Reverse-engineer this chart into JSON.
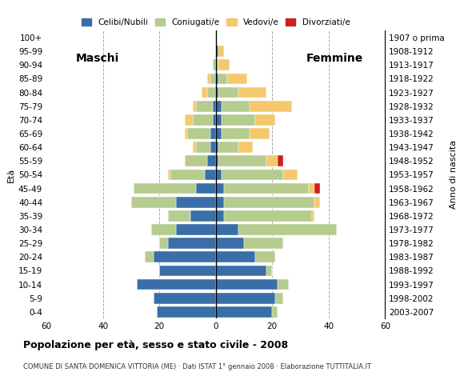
{
  "age_groups": [
    "0-4",
    "5-9",
    "10-14",
    "15-19",
    "20-24",
    "25-29",
    "30-34",
    "35-39",
    "40-44",
    "45-49",
    "50-54",
    "55-59",
    "60-64",
    "65-69",
    "70-74",
    "75-79",
    "80-84",
    "85-89",
    "90-94",
    "95-99",
    "100+"
  ],
  "birth_years": [
    "2003-2007",
    "1998-2002",
    "1993-1997",
    "1988-1992",
    "1983-1987",
    "1978-1982",
    "1973-1977",
    "1968-1972",
    "1963-1967",
    "1958-1962",
    "1953-1957",
    "1948-1952",
    "1943-1947",
    "1938-1942",
    "1933-1937",
    "1928-1932",
    "1923-1927",
    "1918-1922",
    "1913-1917",
    "1908-1912",
    "1907 o prima"
  ],
  "males": {
    "celibe": [
      21,
      22,
      28,
      20,
      22,
      17,
      14,
      9,
      14,
      7,
      4,
      3,
      2,
      2,
      1,
      1,
      0,
      0,
      0,
      0,
      0
    ],
    "coniugato": [
      0,
      0,
      0,
      0,
      3,
      3,
      9,
      8,
      16,
      22,
      12,
      8,
      5,
      8,
      7,
      6,
      3,
      2,
      1,
      0,
      0
    ],
    "vedovo": [
      0,
      0,
      0,
      0,
      0,
      0,
      0,
      0,
      0,
      0,
      1,
      0,
      1,
      1,
      3,
      1,
      2,
      1,
      0,
      0,
      0
    ],
    "divorziato": [
      0,
      0,
      0,
      0,
      0,
      0,
      0,
      0,
      0,
      0,
      0,
      0,
      0,
      0,
      0,
      0,
      0,
      0,
      0,
      0,
      0
    ]
  },
  "females": {
    "nubile": [
      20,
      21,
      22,
      18,
      14,
      10,
      8,
      3,
      3,
      3,
      2,
      1,
      1,
      2,
      2,
      2,
      1,
      1,
      0,
      1,
      0
    ],
    "coniugata": [
      2,
      3,
      4,
      2,
      7,
      14,
      35,
      31,
      32,
      30,
      22,
      17,
      7,
      10,
      12,
      10,
      7,
      3,
      1,
      0,
      0
    ],
    "vedova": [
      0,
      0,
      0,
      0,
      0,
      0,
      0,
      1,
      2,
      2,
      5,
      4,
      5,
      7,
      7,
      15,
      10,
      7,
      4,
      2,
      0
    ],
    "divorziata": [
      0,
      0,
      0,
      0,
      0,
      0,
      0,
      0,
      0,
      2,
      0,
      2,
      0,
      0,
      0,
      0,
      0,
      0,
      0,
      0,
      0
    ]
  },
  "colors": {
    "celibe": "#3a6ea8",
    "coniugato": "#b5cc8e",
    "vedovo": "#f5c86e",
    "divorziato": "#cc2020"
  },
  "xlim": 60,
  "title": "Popolazione per età, sesso e stato civile - 2008",
  "subtitle": "COMUNE DI SANTA DOMENICA VITTORIA (ME) · Dati ISTAT 1° gennaio 2008 · Elaborazione TUTTITALIA.IT",
  "xlabel_left": "Maschi",
  "xlabel_right": "Femmine",
  "ylabel_left": "Età",
  "ylabel_right": "Anno di nascita",
  "legend_labels": [
    "Celibi/Nubili",
    "Coniugati/e",
    "Vedovi/e",
    "Divorziati/e"
  ],
  "bg_color": "#ffffff",
  "grid_color": "#aaaaaa"
}
